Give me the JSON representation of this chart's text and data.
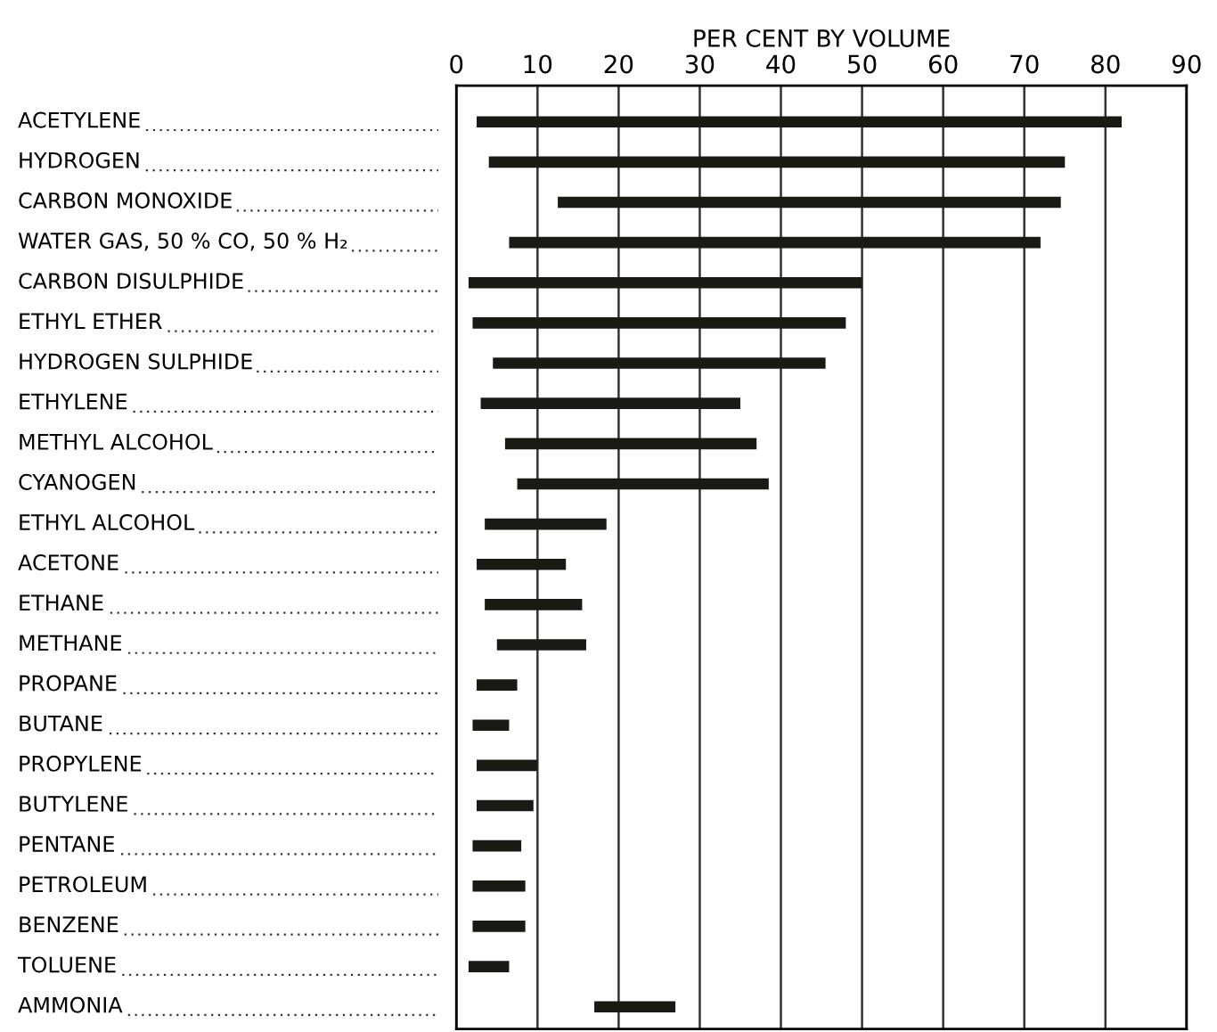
{
  "chart_data": {
    "type": "bar",
    "orientation": "horizontal",
    "xlabel": "PER CENT BY VOLUME",
    "categories": [
      "ACETYLENE",
      "HYDROGEN",
      "CARBON MONOXIDE",
      "WATER GAS, 50 % CO, 50 % H₂",
      "CARBON DISULPHIDE",
      "ETHYL ETHER",
      "HYDROGEN SULPHIDE",
      "ETHYLENE",
      "METHYL ALCOHOL",
      "CYANOGEN",
      "ETHYL ALCOHOL",
      "ACETONE",
      "ETHANE",
      "METHANE",
      "PROPANE",
      "BUTANE",
      "PROPYLENE",
      "BUTYLENE",
      "PENTANE",
      "PETROLEUM",
      "BENZENE",
      "TOLUENE",
      "AMMONIA"
    ],
    "base": [
      2.5,
      4,
      12.5,
      6.5,
      1.5,
      2,
      4.5,
      3,
      6,
      7.5,
      3.5,
      2.5,
      3.5,
      5,
      2.5,
      2,
      2.5,
      2.5,
      2,
      2,
      2,
      1.5,
      17
    ],
    "values": [
      79.5,
      71,
      62,
      65.5,
      48.5,
      46,
      41,
      32,
      31,
      31,
      15,
      11,
      12,
      11,
      5,
      4.5,
      7.5,
      7,
      6,
      6.5,
      6.5,
      5,
      10
    ],
    "color": "#1a1a14",
    "xlim": [
      0,
      90
    ],
    "xticks": [
      0,
      10,
      20,
      30,
      40,
      50,
      60,
      70,
      80,
      90
    ],
    "grid": "x"
  }
}
